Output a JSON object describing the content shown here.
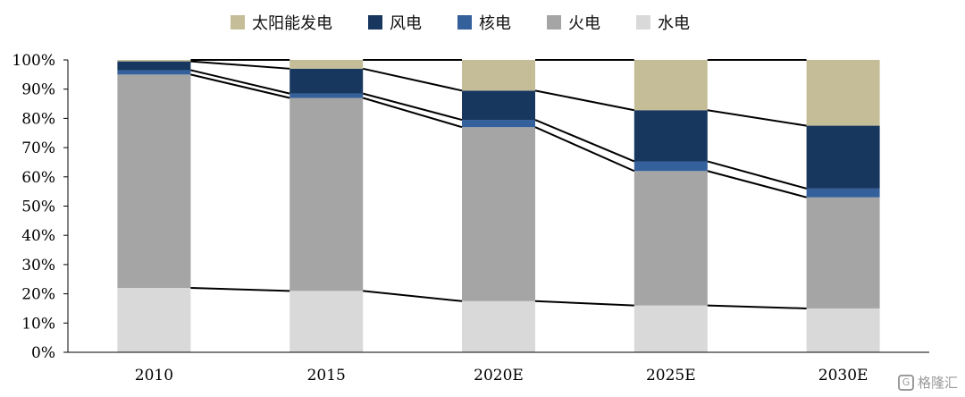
{
  "chart_data": {
    "type": "bar",
    "stacked": true,
    "categories": [
      "2010",
      "2015",
      "2020E",
      "2025E",
      "2030E"
    ],
    "series": [
      {
        "name": "水电",
        "color": "#d9d9d9",
        "values": [
          22,
          21,
          17.5,
          16,
          15
        ]
      },
      {
        "name": "火电",
        "color": "#a5a5a5",
        "values": [
          73,
          66,
          59.5,
          46,
          38
        ]
      },
      {
        "name": "核电",
        "color": "#34609c",
        "values": [
          1.5,
          1.5,
          2.5,
          3.3,
          3
        ]
      },
      {
        "name": "风电",
        "color": "#17375e",
        "values": [
          3,
          8.5,
          10,
          17.5,
          21.5
        ]
      },
      {
        "name": "太阳能发电",
        "color": "#c4bd97",
        "values": [
          0.5,
          3,
          10.5,
          17.2,
          22.5
        ]
      }
    ],
    "legend_order": [
      "太阳能发电",
      "风电",
      "核电",
      "火电",
      "水电"
    ],
    "ylim": [
      0,
      100
    ],
    "yticks": [
      0,
      10,
      20,
      30,
      40,
      50,
      60,
      70,
      80,
      90,
      100
    ],
    "ytick_suffix": "%",
    "legend_position": "top",
    "connector_lines": true,
    "xlabel": "",
    "ylabel": ""
  },
  "watermark": {
    "logo_letter": "G",
    "text": "格隆汇"
  }
}
